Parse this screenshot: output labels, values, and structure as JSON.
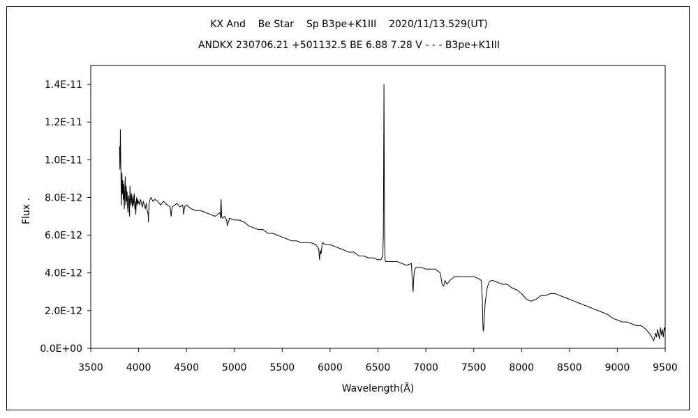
{
  "chart_data": {
    "type": "line",
    "title": "KX And    Be Star    Sp B3pe+K1III    2020/11/13.529(UT)",
    "subtitle": "ANDKX 230706.21 +501132.5 BE 6.88 7.28 V - - - B3pe+K1III",
    "xlabel": "Wavelength(Å)",
    "ylabel": "Flux .",
    "xlim": [
      3500,
      9500
    ],
    "ylim": [
      0,
      1.5e-11
    ],
    "xticks": [
      3500,
      4000,
      4500,
      5000,
      5500,
      6000,
      6500,
      7000,
      7500,
      8000,
      8500,
      9000,
      9500
    ],
    "xtick_labels": [
      "3500",
      "4000",
      "4500",
      "5000",
      "5500",
      "6000",
      "6500",
      "7000",
      "7500",
      "8000",
      "8500",
      "9000",
      "9500"
    ],
    "yticks": [
      0,
      2e-12,
      4e-12,
      6e-12,
      8e-12,
      1e-11,
      1.2e-11,
      1.4e-11
    ],
    "ytick_labels": [
      "0.0E+00",
      "2.0E-12",
      "4.0E-12",
      "6.0E-12",
      "8.0E-12",
      "1.0E-11",
      "1.2E-11",
      "1.4E-11"
    ],
    "grid": false,
    "legend": "none",
    "series": [
      {
        "color": "#000000",
        "x": [
          3800,
          3805,
          3810,
          3813,
          3818,
          3822,
          3826,
          3830,
          3835,
          3840,
          3845,
          3850,
          3855,
          3860,
          3865,
          3870,
          3875,
          3880,
          3885,
          3890,
          3895,
          3900,
          3905,
          3910,
          3915,
          3920,
          3925,
          3930,
          3935,
          3940,
          3945,
          3950,
          3955,
          3960,
          3965,
          3970,
          3975,
          3980,
          3985,
          3990,
          3995,
          4000,
          4010,
          4020,
          4030,
          4040,
          4050,
          4060,
          4070,
          4080,
          4090,
          4100,
          4102,
          4105,
          4110,
          4120,
          4130,
          4150,
          4170,
          4200,
          4230,
          4260,
          4300,
          4330,
          4340,
          4350,
          4380,
          4400,
          4430,
          4460,
          4471,
          4480,
          4500,
          4550,
          4600,
          4650,
          4700,
          4750,
          4800,
          4850,
          4855,
          4861,
          4868,
          4875,
          4900,
          4920,
          4925,
          4950,
          5000,
          5050,
          5100,
          5150,
          5200,
          5250,
          5300,
          5350,
          5400,
          5450,
          5500,
          5550,
          5600,
          5650,
          5700,
          5750,
          5800,
          5850,
          5880,
          5890,
          5896,
          5905,
          5920,
          5950,
          6000,
          6050,
          6100,
          6150,
          6200,
          6250,
          6300,
          6350,
          6400,
          6450,
          6500,
          6530,
          6550,
          6556,
          6560,
          6563,
          6566,
          6570,
          6575,
          6580,
          6600,
          6650,
          6700,
          6750,
          6800,
          6850,
          6860,
          6867,
          6875,
          6885,
          6900,
          6950,
          7000,
          7050,
          7100,
          7150,
          7170,
          7185,
          7200,
          7220,
          7250,
          7300,
          7350,
          7400,
          7450,
          7500,
          7550,
          7580,
          7590,
          7595,
          7600,
          7605,
          7610,
          7620,
          7640,
          7660,
          7680,
          7700,
          7750,
          7800,
          7850,
          7900,
          7950,
          8000,
          8050,
          8100,
          8150,
          8180,
          8200,
          8250,
          8300,
          8350,
          8400,
          8450,
          8500,
          8550,
          8600,
          8650,
          8700,
          8750,
          8800,
          8850,
          8900,
          8950,
          9000,
          9050,
          9100,
          9150,
          9200,
          9250,
          9300,
          9350,
          9380,
          9400,
          9410,
          9420,
          9440,
          9450,
          9460,
          9470,
          9480,
          9490,
          9500
        ],
        "y": [
          1.07e-11,
          9.5e-12,
          1.16e-11,
          1.02e-11,
          8.5e-12,
          7.6e-12,
          9.3e-12,
          8.2e-12,
          8.9e-12,
          7.9e-12,
          8.7e-12,
          7.4e-12,
          8.3e-12,
          9.1e-12,
          7.6e-12,
          8.6e-12,
          7.8e-12,
          8.3e-12,
          7.5e-12,
          7.2e-12,
          8.1e-12,
          7.9e-12,
          7e-12,
          8.6e-12,
          8e-12,
          7.6e-12,
          8.2e-12,
          7.8e-12,
          7.5e-12,
          8.1e-12,
          7.6e-12,
          7.9e-12,
          8.2e-12,
          7.4e-12,
          7.8e-12,
          7.1e-12,
          7.7e-12,
          8e-12,
          7.6e-12,
          7.9e-12,
          7.7e-12,
          7.8e-12,
          7.6e-12,
          7.9e-12,
          7.7e-12,
          7.5e-12,
          7.8e-12,
          7.6e-12,
          7.4e-12,
          7.7e-12,
          7.3e-12,
          7.1e-12,
          6.7e-12,
          7.2e-12,
          7.7e-12,
          7.9e-12,
          8e-12,
          7.8e-12,
          7.9e-12,
          7.8e-12,
          7.6e-12,
          7.8e-12,
          7.6e-12,
          7.5e-12,
          7e-12,
          7.5e-12,
          7.6e-12,
          7.7e-12,
          7.5e-12,
          7.6e-12,
          7.1e-12,
          7.5e-12,
          7.6e-12,
          7.4e-12,
          7.3e-12,
          7.3e-12,
          7.2e-12,
          7.1e-12,
          7e-12,
          7.2e-12,
          6.9e-12,
          7.9e-12,
          7e-12,
          6.9e-12,
          7e-12,
          6.8e-12,
          6.5e-12,
          6.9e-12,
          6.8e-12,
          6.8e-12,
          6.7e-12,
          6.5e-12,
          6.4e-12,
          6.3e-12,
          6.3e-12,
          6.1e-12,
          6.1e-12,
          6e-12,
          5.9e-12,
          5.8e-12,
          5.7e-12,
          5.7e-12,
          5.6e-12,
          5.6e-12,
          5.6e-12,
          5.5e-12,
          5.3e-12,
          4.7e-12,
          5.2e-12,
          5e-12,
          5.6e-12,
          5.5e-12,
          5.5e-12,
          5.4e-12,
          5.3e-12,
          5.2e-12,
          5.1e-12,
          5.1e-12,
          4.9e-12,
          4.9e-12,
          4.8e-12,
          4.8e-12,
          4.7e-12,
          4.7e-12,
          4.9e-12,
          6e-12,
          1.02e-11,
          1.4e-11,
          9e-12,
          5.5e-12,
          4.7e-12,
          4.6e-12,
          4.6e-12,
          4.6e-12,
          4.6e-12,
          4.5e-12,
          4.4e-12,
          4.5e-12,
          3.4e-12,
          3e-12,
          3.8e-12,
          4.2e-12,
          4.3e-12,
          4.3e-12,
          4.2e-12,
          4.2e-12,
          4.2e-12,
          4e-12,
          3.4e-12,
          3.3e-12,
          3.6e-12,
          3.4e-12,
          3.6e-12,
          3.8e-12,
          3.8e-12,
          3.8e-12,
          3.8e-12,
          3.8e-12,
          3.7e-12,
          3.6e-12,
          2.6e-12,
          1.4e-12,
          9e-13,
          1.1e-12,
          1.6e-12,
          2.4e-12,
          3.2e-12,
          3.5e-12,
          3.6e-12,
          3.6e-12,
          3.5e-12,
          3.4e-12,
          3.4e-12,
          3.2e-12,
          3.1e-12,
          2.9e-12,
          2.6e-12,
          2.5e-12,
          2.6e-12,
          2.7e-12,
          2.8e-12,
          2.8e-12,
          2.9e-12,
          2.9e-12,
          2.8e-12,
          2.7e-12,
          2.6e-12,
          2.5e-12,
          2.4e-12,
          2.3e-12,
          2.2e-12,
          2.1e-12,
          2e-12,
          1.9e-12,
          1.8e-12,
          1.6e-12,
          1.5e-12,
          1.4e-12,
          1.4e-12,
          1.3e-12,
          1.2e-12,
          1.2e-12,
          1e-12,
          7e-13,
          4e-13,
          8e-13,
          6e-13,
          1e-12,
          5e-13,
          1.1e-12,
          7e-13,
          1e-12,
          6e-13,
          1.1e-12,
          9e-13
        ]
      }
    ]
  }
}
